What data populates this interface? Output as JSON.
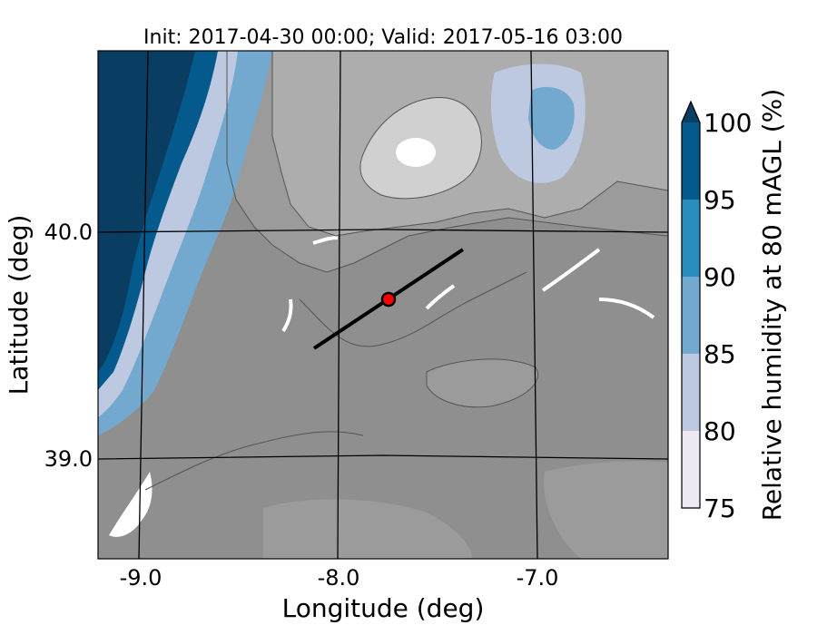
{
  "title": "Init: 2017-04-30 00:00; Valid: 2017-05-16 03:00",
  "xlabel": "Longitude (deg)",
  "ylabel": "Latitude (deg)",
  "x_ticks": [
    "-9.0",
    "-8.0",
    "-7.0"
  ],
  "y_ticks": [
    "40.0",
    "39.0"
  ],
  "colorbar": {
    "label": "Relative humidity at 80 mAGL (%)",
    "ticks": [
      "75",
      "80",
      "85",
      "90",
      "95",
      "100"
    ],
    "colors": [
      "#eee9f3",
      "#bdc8e1",
      "#74a9cf",
      "#2b8cbe",
      "#045a8d",
      "#0a3d62"
    ],
    "extend": "max"
  },
  "terrain_colors": {
    "low": "#8f8f8f",
    "mid": "#9b9b9b",
    "high": "#adadad",
    "peak": "#d0d0d0",
    "contour": "#555555",
    "water": "#ffffff"
  },
  "cross_section": {
    "start": {
      "lon": -8.12,
      "lat": 39.48
    },
    "end": {
      "lon": -7.37,
      "lat": 39.93
    },
    "color": "#000000"
  },
  "marker": {
    "lon": -7.75,
    "lat": 39.7,
    "color": "#ff0000",
    "edge": "#000000"
  }
}
